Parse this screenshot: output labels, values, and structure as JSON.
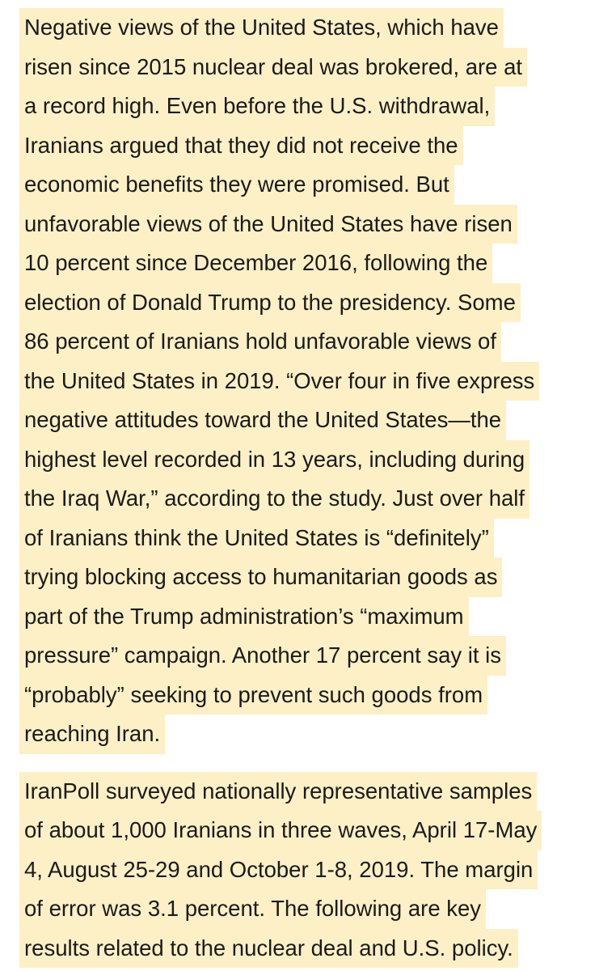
{
  "paragraphs": [
    {
      "lines": [
        "Negative views of the United States, which have",
        "risen since 2015 nuclear deal was brokered, are at",
        "a record high. Even before the U.S. withdrawal,",
        "Iranians argued that they did not receive the",
        "economic benefits they were promised. But",
        "unfavorable views of the United States have risen",
        "10 percent since December 2016, following the",
        "election of Donald Trump to the presidency. Some",
        "86 percent of Iranians hold unfavorable views of",
        "the United States in 2019. “Over four in five express",
        "negative attitudes toward the United States—the",
        "highest level recorded in 13 years, including during",
        "the Iraq War,” according to the study. Just over half",
        "of Iranians think the United States is “definitely”",
        "trying blocking access to humanitarian goods as",
        "part of the Trump administration’s “maximum",
        "pressure” campaign. Another 17 percent say it is",
        "“probably” seeking to prevent such goods from",
        "reaching Iran."
      ]
    },
    {
      "lines": [
        "IranPoll surveyed nationally representative samples",
        "of about 1,000 Iranians in three waves, April 17-May",
        "4, August 25-29 and October 1-8, 2019. The margin",
        "of error was 3.1 percent. The following are key",
        "results related to the nuclear deal and U.S. policy."
      ]
    }
  ]
}
